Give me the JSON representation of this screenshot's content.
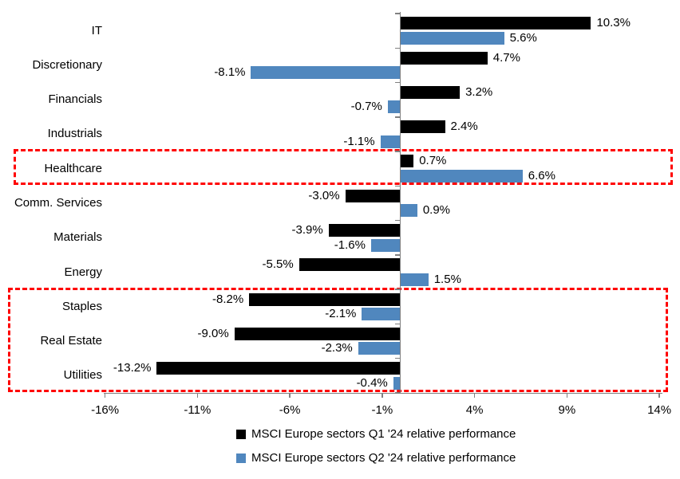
{
  "chart_data": {
    "type": "bar",
    "orientation": "horizontal",
    "title": "",
    "categories": [
      "IT",
      "Discretionary",
      "Financials",
      "Industrials",
      "Healthcare",
      "Comm. Services",
      "Materials",
      "Energy",
      "Staples",
      "Real Estate",
      "Utilities"
    ],
    "series": [
      {
        "name": "MSCI Europe sectors Q1 '24 relative performance",
        "color": "#000000",
        "values": [
          10.3,
          4.7,
          3.2,
          2.4,
          0.7,
          -3.0,
          -3.9,
          -5.5,
          -8.2,
          -9.0,
          -13.2
        ]
      },
      {
        "name": "MSCI Europe sectors Q2 '24 relative performance",
        "color": "#5087BE",
        "values": [
          5.6,
          -8.1,
          -0.7,
          -1.1,
          6.6,
          0.9,
          -1.6,
          1.5,
          -2.1,
          -2.3,
          -0.4
        ]
      }
    ],
    "x_axis": {
      "tick_values": [
        -16,
        -11,
        -6,
        -1,
        4,
        9,
        14
      ],
      "tick_labels": [
        "-16%",
        "-11%",
        "-6%",
        "-1%",
        "4%",
        "9%",
        "14%"
      ],
      "min": -16,
      "max": 14,
      "unit": "%"
    },
    "data_labels": true,
    "grid": false,
    "legend_position": "bottom",
    "axis_color": "#808080",
    "highlight_color": "#FF0000",
    "highlights": [
      {
        "name": "healthcare-highlight",
        "rows": [
          4
        ]
      },
      {
        "name": "defensives-highlight",
        "rows": [
          8,
          9,
          10
        ]
      }
    ]
  },
  "legend": {
    "items": [
      {
        "label": "MSCI Europe sectors Q1 '24 relative performance",
        "color": "#000000"
      },
      {
        "label": "MSCI Europe sectors Q2 '24 relative performance",
        "color": "#5087BE"
      }
    ]
  }
}
